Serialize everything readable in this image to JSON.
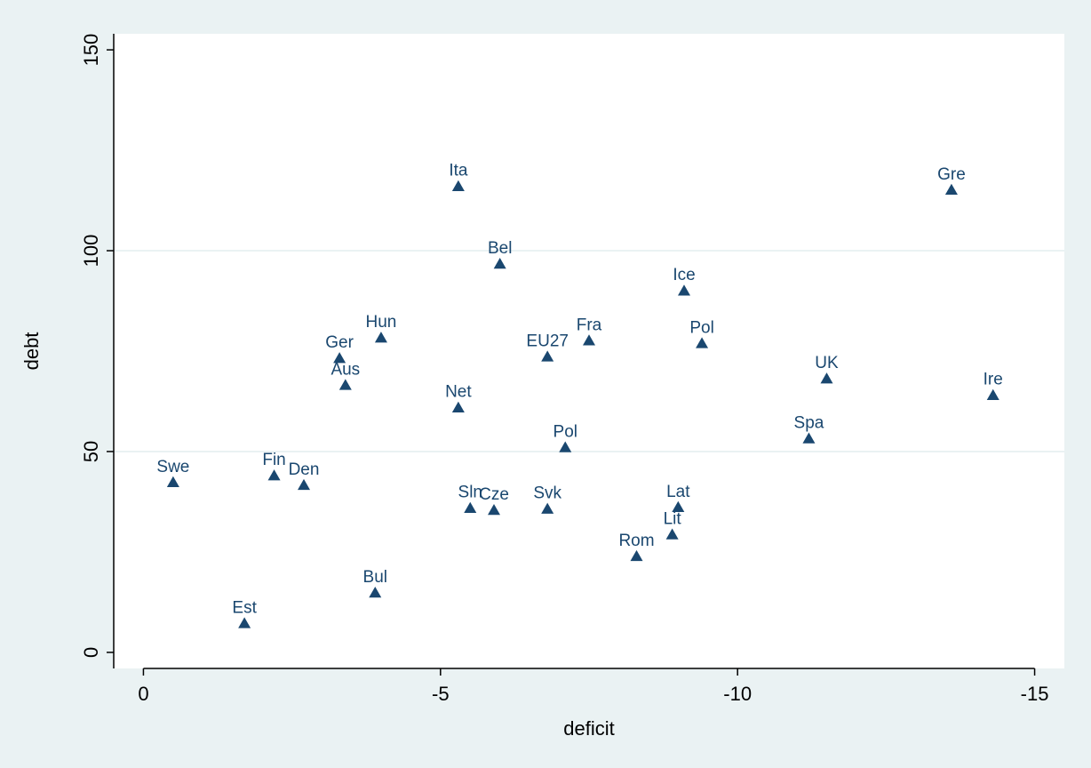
{
  "chart_data": {
    "type": "scatter",
    "title": "",
    "xlabel": "deficit",
    "ylabel": "debt",
    "xlim": [
      0.5,
      -15.5
    ],
    "ylim": [
      -4,
      154
    ],
    "x_axis_reversed": true,
    "x_ticks": [
      0,
      -5,
      -10,
      -15
    ],
    "x_tick_labels": [
      "0",
      "-5",
      "-10",
      "-15"
    ],
    "y_ticks": [
      0,
      50,
      100,
      150
    ],
    "y_tick_labels": [
      "0",
      "50",
      "100",
      "150"
    ],
    "grid": "horizontal",
    "marker": "triangle",
    "colors": {
      "background": "#eaf2f3",
      "plot_area": "#ffffff",
      "marker": "#1a476f",
      "label": "#1a476f",
      "gridline": "#eaf2f3"
    },
    "points": [
      {
        "label": "Ita",
        "x": -5.3,
        "y": 116
      },
      {
        "label": "Gre",
        "x": -13.6,
        "y": 115.1
      },
      {
        "label": "Bel",
        "x": -6.0,
        "y": 96.7
      },
      {
        "label": "Ice",
        "x": -9.1,
        "y": 90
      },
      {
        "label": "Hun",
        "x": -4.0,
        "y": 78.3
      },
      {
        "label": "Fra",
        "x": -7.5,
        "y": 77.6
      },
      {
        "label": "Pol",
        "x": -9.4,
        "y": 76.9
      },
      {
        "label": "EU27",
        "x": -6.8,
        "y": 73.6
      },
      {
        "label": "Ger",
        "x": -3.3,
        "y": 73.2
      },
      {
        "label": "UK",
        "x": -11.5,
        "y": 68.1
      },
      {
        "label": "Aus",
        "x": -3.4,
        "y": 66.5
      },
      {
        "label": "Ire",
        "x": -14.3,
        "y": 64
      },
      {
        "label": "Net",
        "x": -5.3,
        "y": 60.9
      },
      {
        "label": "Spa",
        "x": -11.2,
        "y": 53.2
      },
      {
        "label": "Pol",
        "x": -7.1,
        "y": 51
      },
      {
        "label": "Swe",
        "x": -0.5,
        "y": 42.3
      },
      {
        "label": "Fin",
        "x": -2.2,
        "y": 44
      },
      {
        "label": "Den",
        "x": -2.7,
        "y": 41.6
      },
      {
        "label": "Sln",
        "x": -5.5,
        "y": 35.9
      },
      {
        "label": "Svk",
        "x": -6.8,
        "y": 35.7
      },
      {
        "label": "Cze",
        "x": -5.9,
        "y": 35.4
      },
      {
        "label": "Lat",
        "x": -9.0,
        "y": 36.1
      },
      {
        "label": "Lit",
        "x": -8.9,
        "y": 29.3
      },
      {
        "label": "Rom",
        "x": -8.3,
        "y": 23.9
      },
      {
        "label": "Bul",
        "x": -3.9,
        "y": 14.8
      },
      {
        "label": "Est",
        "x": -1.7,
        "y": 7.2
      }
    ]
  }
}
